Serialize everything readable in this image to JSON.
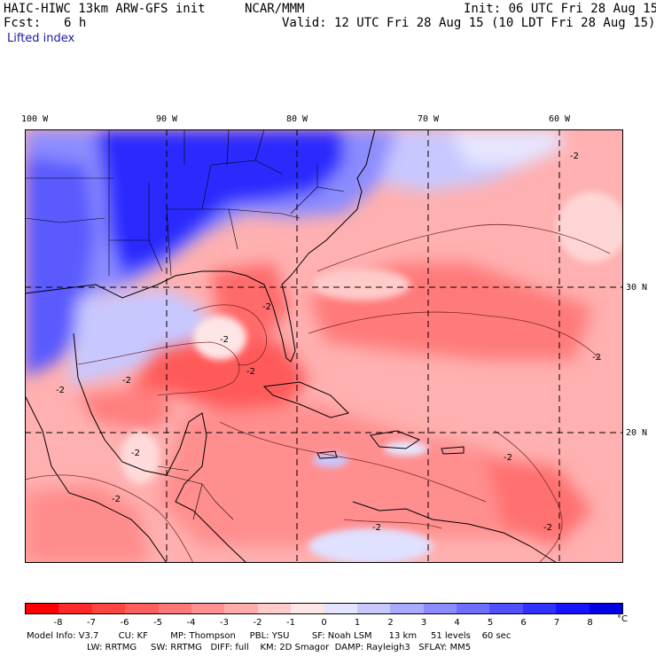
{
  "header": {
    "model_title": "HAIC-HIWC 13km ARW-GFS init",
    "org": "NCAR/MMM",
    "init": "Init: 06 UTC Fri 28 Aug 15",
    "fcst_label": "Fcst:",
    "fcst_value": "6 h",
    "valid": "Valid: 12 UTC Fri 28 Aug 15 (10 LDT Fri 28 Aug 15)",
    "field": "Lifted index"
  },
  "map": {
    "lon_labels": [
      "100 W",
      "90 W",
      "80 W",
      "70 W",
      "60 W"
    ],
    "lat_labels": [
      "30 N",
      "20 N"
    ],
    "contour_labels": [
      "-2",
      "-2",
      "-2",
      "-2",
      "-2",
      "-2",
      "-2",
      "-2",
      "-2",
      "-2",
      "-2",
      "-2"
    ]
  },
  "colorbar": {
    "ticks": [
      "-8",
      "-7",
      "-6",
      "-5",
      "-4",
      "-3",
      "-2",
      "-1",
      "0",
      "1",
      "2",
      "3",
      "4",
      "5",
      "6",
      "7",
      "8"
    ],
    "unit": "°C",
    "colors": [
      "#ff0000",
      "#ff2a2a",
      "#ff4444",
      "#ff5e5e",
      "#ff7878",
      "#ff9292",
      "#ffacac",
      "#ffcaca",
      "#ffe6e6",
      "#e4e4ff",
      "#c8c8ff",
      "#aaaaff",
      "#8c8cff",
      "#6e6eff",
      "#5050ff",
      "#3232ff",
      "#1414ff",
      "#0000e6"
    ]
  },
  "model_info": {
    "line1": "Model Info: V3.7       CU: KF        MP: Thompson     PBL: YSU        SF: Noah LSM      13 km     51 levels    60 sec",
    "line2": "LW: RRTMG     SW: RRTMG   DIFF: full    KM: 2D Smagor  DAMP: Rayleigh3   SFLAY: MM5"
  }
}
